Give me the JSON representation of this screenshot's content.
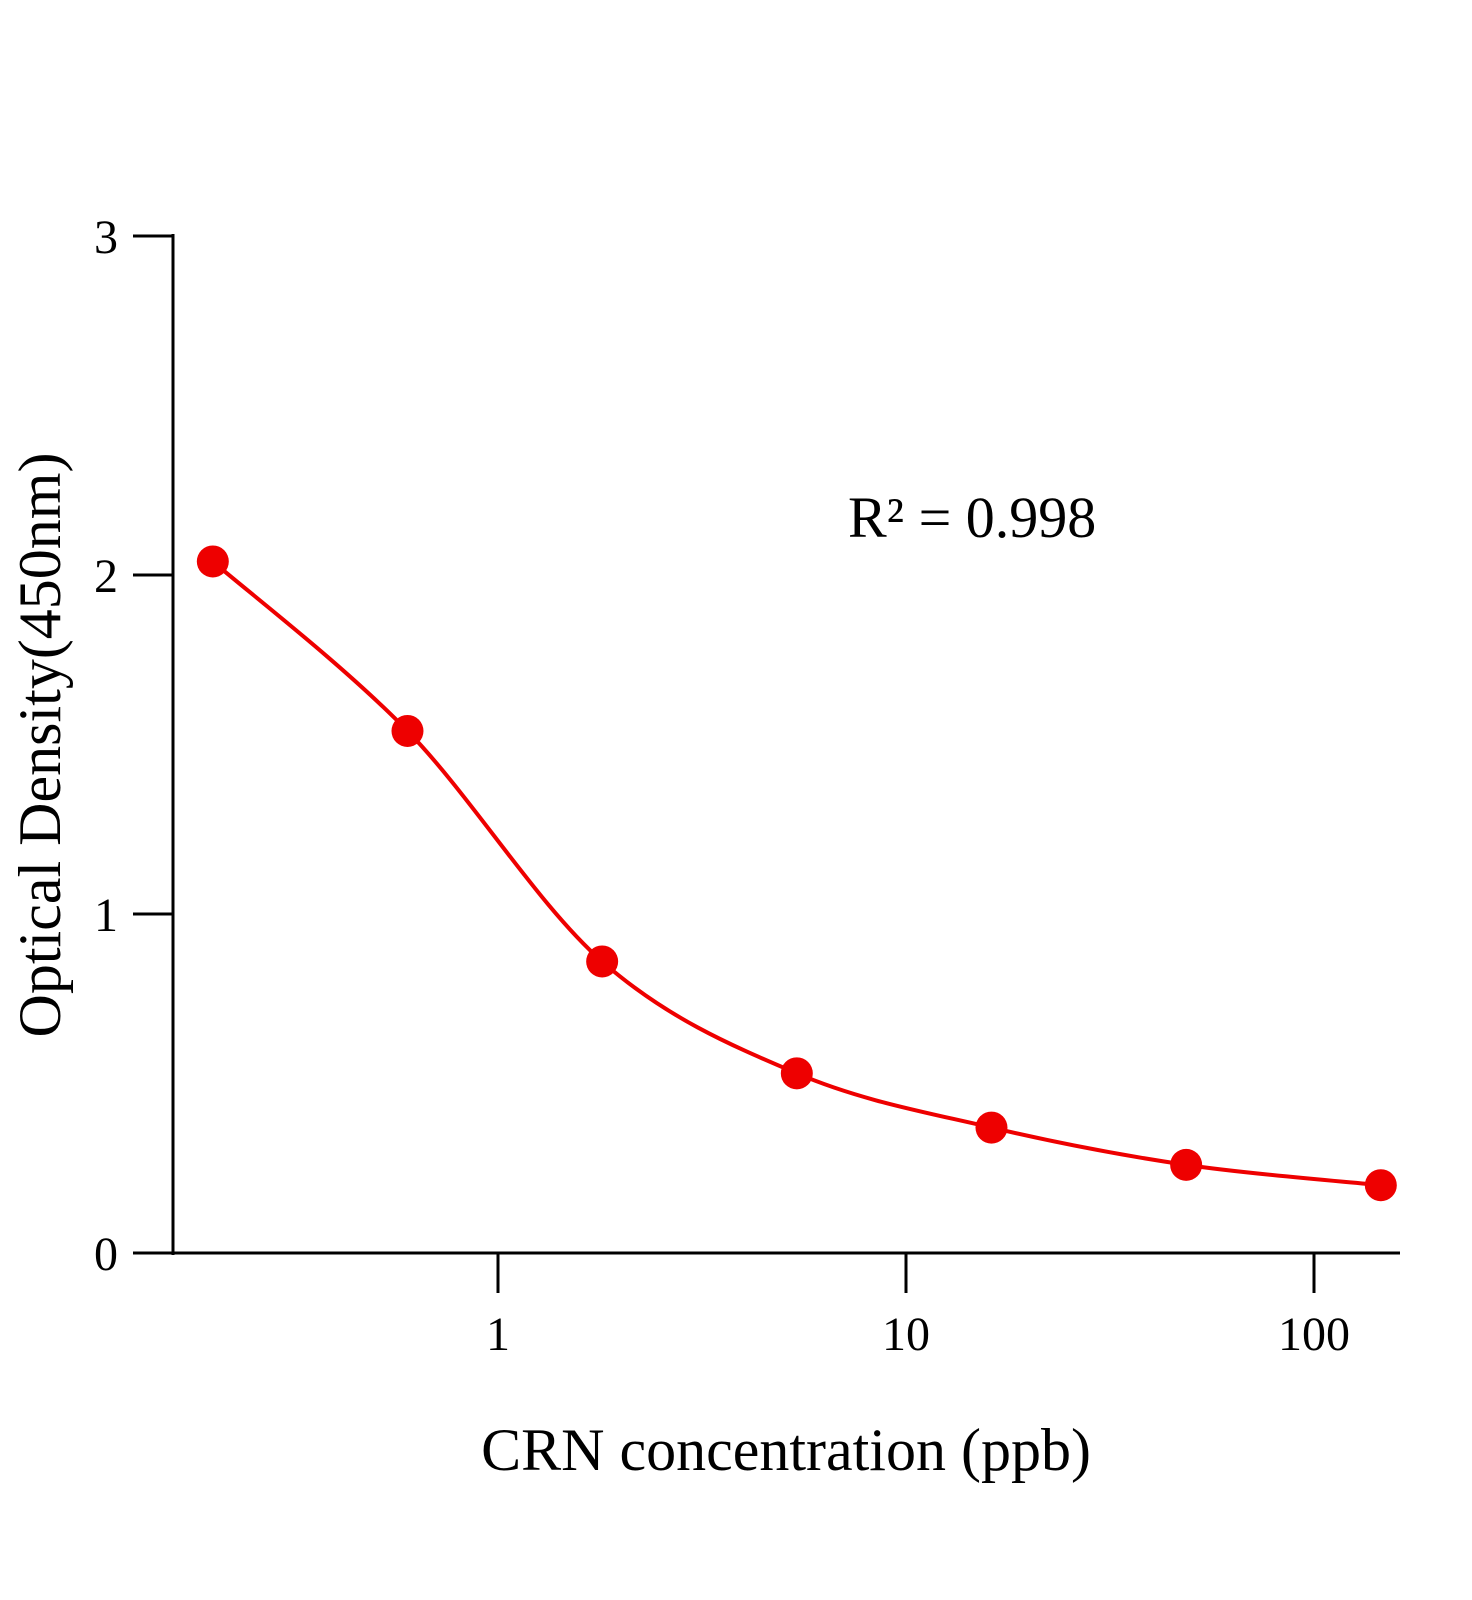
{
  "chart_data": {
    "type": "line",
    "title": "",
    "xlabel": "CRN concentration (ppb)",
    "ylabel": "Optical Density(450nm)",
    "x_scale": "log",
    "xlim": [
      0.127,
      163
    ],
    "ylim": [
      0,
      3
    ],
    "x_ticks": [
      1,
      10,
      100
    ],
    "x_tick_labels": [
      "1",
      "10",
      "100"
    ],
    "y_ticks": [
      0,
      1,
      2,
      3
    ],
    "y_tick_labels": [
      "0",
      "1",
      "2",
      "3"
    ],
    "grid": false,
    "annotation": "R² = 0.998",
    "series": [
      {
        "x": [
          0.2,
          0.6,
          1.8,
          5.4,
          16.2,
          48.6,
          145.8
        ],
        "y": [
          2.04,
          1.54,
          0.86,
          0.53,
          0.37,
          0.26,
          0.2
        ],
        "color": "#ee0000",
        "markers": true,
        "fitted_curve": true
      }
    ]
  }
}
